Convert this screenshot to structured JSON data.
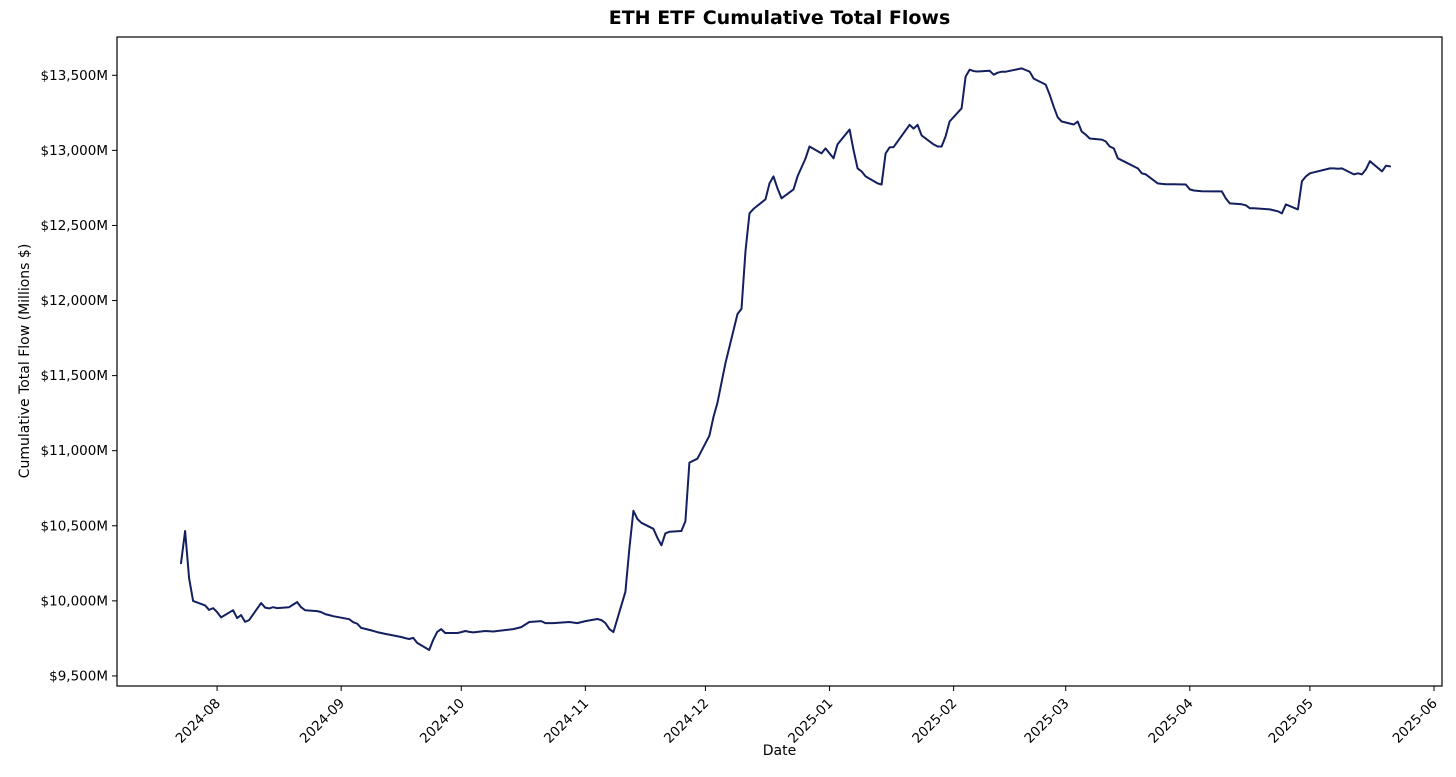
{
  "title": "ETH ETF Cumulative Total Flows",
  "chart_data": {
    "type": "line",
    "title": "ETH ETF Cumulative Total Flows",
    "xlabel": "Date",
    "ylabel": "Cumulative Total Flow (Millions $)",
    "unit": "USD millions",
    "grid": false,
    "legend": null,
    "background_color": "#ffffff",
    "line_color": "#131f5e",
    "line_width": 2,
    "xlim": [
      "2024-07-07",
      "2025-06-03"
    ],
    "ylim": [
      9433,
      13755
    ],
    "x_ticks": [
      {
        "date": "2024-08-01",
        "label": "2024-08"
      },
      {
        "date": "2024-09-01",
        "label": "2024-09"
      },
      {
        "date": "2024-10-01",
        "label": "2024-10"
      },
      {
        "date": "2024-11-01",
        "label": "2024-11"
      },
      {
        "date": "2024-12-01",
        "label": "2024-12"
      },
      {
        "date": "2025-01-01",
        "label": "2025-01"
      },
      {
        "date": "2025-02-01",
        "label": "2025-02"
      },
      {
        "date": "2025-03-01",
        "label": "2025-03"
      },
      {
        "date": "2025-04-01",
        "label": "2025-04"
      },
      {
        "date": "2025-05-01",
        "label": "2025-05"
      },
      {
        "date": "2025-06-01",
        "label": "2025-06"
      }
    ],
    "y_ticks": [
      {
        "value": 9500,
        "label": "$9,500M"
      },
      {
        "value": 10000,
        "label": "$10,000M"
      },
      {
        "value": 10500,
        "label": "$10,500M"
      },
      {
        "value": 11000,
        "label": "$11,000M"
      },
      {
        "value": 11500,
        "label": "$11,500M"
      },
      {
        "value": 12000,
        "label": "$12,000M"
      },
      {
        "value": 12500,
        "label": "$12,500M"
      },
      {
        "value": 13000,
        "label": "$13,000M"
      },
      {
        "value": 13500,
        "label": "$13,500M"
      }
    ],
    "series": [
      {
        "name": "Cumulative Total Flow",
        "points": [
          [
            "2024-07-23",
            10250
          ],
          [
            "2024-07-24",
            10465
          ],
          [
            "2024-07-25",
            10150
          ],
          [
            "2024-07-26",
            10000
          ],
          [
            "2024-07-29",
            9970
          ],
          [
            "2024-07-30",
            9940
          ],
          [
            "2024-07-31",
            9952
          ],
          [
            "2024-08-01",
            9925
          ],
          [
            "2024-08-02",
            9890
          ],
          [
            "2024-08-05",
            9938
          ],
          [
            "2024-08-06",
            9885
          ],
          [
            "2024-08-07",
            9905
          ],
          [
            "2024-08-08",
            9860
          ],
          [
            "2024-08-09",
            9872
          ],
          [
            "2024-08-12",
            9985
          ],
          [
            "2024-08-13",
            9955
          ],
          [
            "2024-08-14",
            9950
          ],
          [
            "2024-08-15",
            9958
          ],
          [
            "2024-08-16",
            9952
          ],
          [
            "2024-08-19",
            9958
          ],
          [
            "2024-08-20",
            9975
          ],
          [
            "2024-08-21",
            9992
          ],
          [
            "2024-08-22",
            9958
          ],
          [
            "2024-08-23",
            9938
          ],
          [
            "2024-08-26",
            9932
          ],
          [
            "2024-08-27",
            9925
          ],
          [
            "2024-08-28",
            9912
          ],
          [
            "2024-08-29",
            9905
          ],
          [
            "2024-08-30",
            9898
          ],
          [
            "2024-09-03",
            9878
          ],
          [
            "2024-09-04",
            9858
          ],
          [
            "2024-09-05",
            9848
          ],
          [
            "2024-09-06",
            9820
          ],
          [
            "2024-09-09",
            9800
          ],
          [
            "2024-09-10",
            9792
          ],
          [
            "2024-09-11",
            9786
          ],
          [
            "2024-09-12",
            9780
          ],
          [
            "2024-09-13",
            9775
          ],
          [
            "2024-09-16",
            9759
          ],
          [
            "2024-09-17",
            9752
          ],
          [
            "2024-09-18",
            9746
          ],
          [
            "2024-09-19",
            9753
          ],
          [
            "2024-09-20",
            9720
          ],
          [
            "2024-09-23",
            9673
          ],
          [
            "2024-09-24",
            9740
          ],
          [
            "2024-09-25",
            9793
          ],
          [
            "2024-09-26",
            9812
          ],
          [
            "2024-09-27",
            9786
          ],
          [
            "2024-09-30",
            9786
          ],
          [
            "2024-10-01",
            9792
          ],
          [
            "2024-10-02",
            9799
          ],
          [
            "2024-10-03",
            9793
          ],
          [
            "2024-10-04",
            9790
          ],
          [
            "2024-10-07",
            9799
          ],
          [
            "2024-10-09",
            9796
          ],
          [
            "2024-10-10",
            9799
          ],
          [
            "2024-10-14",
            9812
          ],
          [
            "2024-10-16",
            9825
          ],
          [
            "2024-10-18",
            9859
          ],
          [
            "2024-10-21",
            9865
          ],
          [
            "2024-10-22",
            9852
          ],
          [
            "2024-10-24",
            9852
          ],
          [
            "2024-10-28",
            9859
          ],
          [
            "2024-10-30",
            9852
          ],
          [
            "2024-11-01",
            9865
          ],
          [
            "2024-11-04",
            9879
          ],
          [
            "2024-11-05",
            9872
          ],
          [
            "2024-11-06",
            9852
          ],
          [
            "2024-11-07",
            9812
          ],
          [
            "2024-11-08",
            9792
          ],
          [
            "2024-11-11",
            10060
          ],
          [
            "2024-11-12",
            10350
          ],
          [
            "2024-11-13",
            10600
          ],
          [
            "2024-11-14",
            10545
          ],
          [
            "2024-11-15",
            10520
          ],
          [
            "2024-11-18",
            10480
          ],
          [
            "2024-11-19",
            10420
          ],
          [
            "2024-11-20",
            10370
          ],
          [
            "2024-11-21",
            10450
          ],
          [
            "2024-11-22",
            10460
          ],
          [
            "2024-11-25",
            10465
          ],
          [
            "2024-11-26",
            10530
          ],
          [
            "2024-11-27",
            10921
          ],
          [
            "2024-11-29",
            10947
          ],
          [
            "2024-12-02",
            11100
          ],
          [
            "2024-12-03",
            11225
          ],
          [
            "2024-12-04",
            11320
          ],
          [
            "2024-12-05",
            11453
          ],
          [
            "2024-12-06",
            11585
          ],
          [
            "2024-12-09",
            11910
          ],
          [
            "2024-12-10",
            11945
          ],
          [
            "2024-12-11",
            12330
          ],
          [
            "2024-12-12",
            12581
          ],
          [
            "2024-12-13",
            12610
          ],
          [
            "2024-12-16",
            12674
          ],
          [
            "2024-12-17",
            12780
          ],
          [
            "2024-12-18",
            12827
          ],
          [
            "2024-12-19",
            12747
          ],
          [
            "2024-12-20",
            12681
          ],
          [
            "2024-12-23",
            12740
          ],
          [
            "2024-12-24",
            12827
          ],
          [
            "2024-12-26",
            12946
          ],
          [
            "2024-12-27",
            13026
          ],
          [
            "2024-12-30",
            12980
          ],
          [
            "2024-12-31",
            13013
          ],
          [
            "2025-01-02",
            12947
          ],
          [
            "2025-01-03",
            13040
          ],
          [
            "2025-01-06",
            13139
          ],
          [
            "2025-01-07",
            13000
          ],
          [
            "2025-01-08",
            12880
          ],
          [
            "2025-01-09",
            12860
          ],
          [
            "2025-01-10",
            12827
          ],
          [
            "2025-01-13",
            12780
          ],
          [
            "2025-01-14",
            12773
          ],
          [
            "2025-01-15",
            12980
          ],
          [
            "2025-01-16",
            13020
          ],
          [
            "2025-01-17",
            13022
          ],
          [
            "2025-01-21",
            13170
          ],
          [
            "2025-01-22",
            13145
          ],
          [
            "2025-01-23",
            13170
          ],
          [
            "2025-01-24",
            13100
          ],
          [
            "2025-01-27",
            13040
          ],
          [
            "2025-01-28",
            13026
          ],
          [
            "2025-01-29",
            13026
          ],
          [
            "2025-01-30",
            13093
          ],
          [
            "2025-01-31",
            13192
          ],
          [
            "2025-02-03",
            13280
          ],
          [
            "2025-02-04",
            13491
          ],
          [
            "2025-02-05",
            13537
          ],
          [
            "2025-02-06",
            13528
          ],
          [
            "2025-02-07",
            13525
          ],
          [
            "2025-02-10",
            13530
          ],
          [
            "2025-02-11",
            13504
          ],
          [
            "2025-02-12",
            13517
          ],
          [
            "2025-02-13",
            13524
          ],
          [
            "2025-02-14",
            13524
          ],
          [
            "2025-02-18",
            13546
          ],
          [
            "2025-02-19",
            13535
          ],
          [
            "2025-02-20",
            13524
          ],
          [
            "2025-02-21",
            13478
          ],
          [
            "2025-02-24",
            13438
          ],
          [
            "2025-02-25",
            13371
          ],
          [
            "2025-02-26",
            13291
          ],
          [
            "2025-02-27",
            13220
          ],
          [
            "2025-02-28",
            13192
          ],
          [
            "2025-03-03",
            13172
          ],
          [
            "2025-03-04",
            13192
          ],
          [
            "2025-03-05",
            13125
          ],
          [
            "2025-03-06",
            13105
          ],
          [
            "2025-03-07",
            13079
          ],
          [
            "2025-03-10",
            13072
          ],
          [
            "2025-03-11",
            13060
          ],
          [
            "2025-03-12",
            13026
          ],
          [
            "2025-03-13",
            13013
          ],
          [
            "2025-03-14",
            12947
          ],
          [
            "2025-03-17",
            12907
          ],
          [
            "2025-03-18",
            12893
          ],
          [
            "2025-03-19",
            12880
          ],
          [
            "2025-03-20",
            12847
          ],
          [
            "2025-03-21",
            12840
          ],
          [
            "2025-03-24",
            12780
          ],
          [
            "2025-03-25",
            12777
          ],
          [
            "2025-03-26",
            12775
          ],
          [
            "2025-03-27",
            12775
          ],
          [
            "2025-03-28",
            12775
          ],
          [
            "2025-03-31",
            12773
          ],
          [
            "2025-04-01",
            12740
          ],
          [
            "2025-04-02",
            12733
          ],
          [
            "2025-04-03",
            12730
          ],
          [
            "2025-04-04",
            12728
          ],
          [
            "2025-04-07",
            12727
          ],
          [
            "2025-04-08",
            12727
          ],
          [
            "2025-04-09",
            12727
          ],
          [
            "2025-04-10",
            12680
          ],
          [
            "2025-04-11",
            12647
          ],
          [
            "2025-04-14",
            12641
          ],
          [
            "2025-04-15",
            12634
          ],
          [
            "2025-04-16",
            12614
          ],
          [
            "2025-04-17",
            12614
          ],
          [
            "2025-04-21",
            12607
          ],
          [
            "2025-04-22",
            12600
          ],
          [
            "2025-04-23",
            12594
          ],
          [
            "2025-04-24",
            12580
          ],
          [
            "2025-04-25",
            12640
          ],
          [
            "2025-04-28",
            12607
          ],
          [
            "2025-04-29",
            12794
          ],
          [
            "2025-04-30",
            12827
          ],
          [
            "2025-05-01",
            12847
          ],
          [
            "2025-05-02",
            12854
          ],
          [
            "2025-05-05",
            12873
          ],
          [
            "2025-05-06",
            12880
          ],
          [
            "2025-05-07",
            12880
          ],
          [
            "2025-05-08",
            12878
          ],
          [
            "2025-05-09",
            12880
          ],
          [
            "2025-05-12",
            12840
          ],
          [
            "2025-05-13",
            12847
          ],
          [
            "2025-05-14",
            12840
          ],
          [
            "2025-05-15",
            12873
          ],
          [
            "2025-05-16",
            12928
          ],
          [
            "2025-05-19",
            12860
          ],
          [
            "2025-05-20",
            12898
          ],
          [
            "2025-05-21",
            12893
          ]
        ]
      }
    ]
  }
}
